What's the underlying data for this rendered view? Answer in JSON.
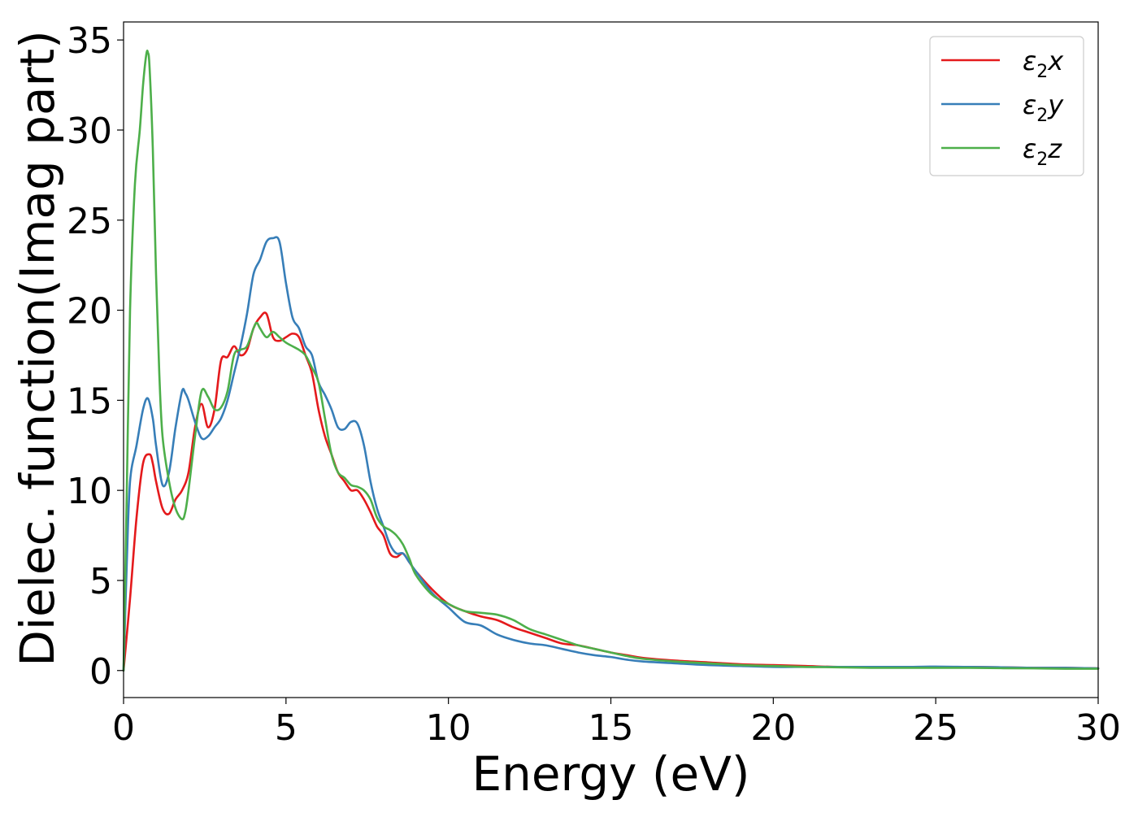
{
  "chart_data": {
    "type": "line",
    "title": "",
    "xlabel": "Energy (eV)",
    "ylabel": "Dielec. function(Imag part)",
    "xlim": [
      0,
      30
    ],
    "ylim": [
      -1.5,
      36
    ],
    "xticks": [
      0,
      5,
      10,
      15,
      20,
      25,
      30
    ],
    "yticks": [
      0,
      5,
      10,
      15,
      20,
      25,
      30,
      35
    ],
    "grid": false,
    "legend_position": "top-right",
    "series": [
      {
        "name": "ε₂x",
        "legend_base": "ε",
        "legend_sub": "2",
        "legend_suffix": "x",
        "color": "#e41a1c",
        "x": [
          0,
          0.2,
          0.4,
          0.6,
          0.8,
          0.9,
          1.0,
          1.2,
          1.4,
          1.6,
          1.8,
          2.0,
          2.2,
          2.4,
          2.6,
          2.8,
          3.0,
          3.2,
          3.4,
          3.6,
          3.8,
          4.0,
          4.2,
          4.4,
          4.6,
          4.8,
          5.0,
          5.2,
          5.4,
          5.6,
          5.8,
          6.0,
          6.2,
          6.4,
          6.6,
          6.8,
          7.0,
          7.2,
          7.4,
          7.6,
          7.8,
          8.0,
          8.2,
          8.4,
          8.6,
          8.8,
          9.0,
          9.5,
          10.0,
          10.5,
          11.0,
          11.5,
          12.0,
          12.5,
          13.0,
          13.5,
          14.0,
          14.5,
          15.0,
          15.5,
          16.0,
          17.0,
          18.0,
          19.0,
          20.0,
          21.0,
          22.0,
          23.0,
          24.0,
          25.0,
          26.0,
          27.0,
          28.0,
          29.0,
          30.0
        ],
        "y": [
          0,
          4.0,
          8.5,
          11.5,
          12.0,
          11.5,
          10.5,
          9.0,
          8.7,
          9.5,
          10.0,
          11.0,
          13.5,
          14.8,
          13.5,
          14.5,
          17.2,
          17.4,
          18.0,
          17.5,
          17.8,
          19.0,
          19.6,
          19.8,
          18.5,
          18.3,
          18.5,
          18.7,
          18.5,
          17.5,
          16.5,
          14.5,
          13.0,
          12.0,
          11.0,
          10.5,
          10.0,
          10.0,
          9.5,
          8.8,
          8.0,
          7.5,
          6.5,
          6.3,
          6.5,
          6.0,
          5.5,
          4.5,
          3.7,
          3.3,
          3.0,
          2.8,
          2.4,
          2.1,
          1.8,
          1.5,
          1.4,
          1.2,
          1.0,
          0.85,
          0.7,
          0.55,
          0.45,
          0.35,
          0.3,
          0.25,
          0.2,
          0.2,
          0.2,
          0.2,
          0.2,
          0.18,
          0.15,
          0.15,
          0.12
        ]
      },
      {
        "name": "ε₂y",
        "legend_base": "ε",
        "legend_sub": "2",
        "legend_suffix": "y",
        "color": "#377eb8",
        "x": [
          0,
          0.1,
          0.2,
          0.4,
          0.6,
          0.75,
          0.9,
          1.0,
          1.2,
          1.4,
          1.6,
          1.8,
          1.9,
          2.0,
          2.2,
          2.4,
          2.6,
          2.8,
          3.0,
          3.2,
          3.4,
          3.6,
          3.8,
          4.0,
          4.2,
          4.4,
          4.6,
          4.8,
          5.0,
          5.2,
          5.4,
          5.6,
          5.8,
          6.0,
          6.2,
          6.4,
          6.6,
          6.8,
          7.0,
          7.2,
          7.4,
          7.6,
          7.8,
          8.0,
          8.2,
          8.4,
          8.6,
          8.8,
          9.0,
          9.5,
          10.0,
          10.5,
          11.0,
          11.5,
          12.0,
          12.5,
          13.0,
          13.5,
          14.0,
          14.5,
          15.0,
          15.5,
          16.0,
          17.0,
          18.0,
          19.0,
          20.0,
          21.0,
          22.0,
          23.0,
          24.0,
          25.0,
          26.0,
          27.0,
          28.0,
          29.0,
          30.0
        ],
        "y": [
          0,
          6.0,
          10.5,
          12.5,
          14.5,
          15.1,
          14.0,
          12.5,
          10.3,
          11.0,
          13.5,
          15.5,
          15.4,
          15.0,
          13.8,
          12.9,
          13.0,
          13.5,
          14.0,
          15.0,
          16.5,
          18.0,
          19.8,
          22.0,
          22.8,
          23.8,
          24.0,
          23.8,
          21.5,
          19.6,
          19.0,
          18.0,
          17.5,
          16.0,
          15.3,
          14.5,
          13.5,
          13.4,
          13.8,
          13.7,
          12.5,
          10.5,
          9.0,
          8.0,
          7.0,
          6.5,
          6.5,
          6.0,
          5.5,
          4.3,
          3.5,
          2.7,
          2.5,
          2.0,
          1.7,
          1.5,
          1.4,
          1.2,
          1.0,
          0.85,
          0.75,
          0.6,
          0.5,
          0.4,
          0.3,
          0.25,
          0.2,
          0.2,
          0.2,
          0.2,
          0.2,
          0.22,
          0.2,
          0.18,
          0.15,
          0.15,
          0.12
        ]
      },
      {
        "name": "ε₂z",
        "legend_base": "ε",
        "legend_sub": "2",
        "legend_suffix": "z",
        "color": "#4daf4a",
        "x": [
          0,
          0.1,
          0.2,
          0.35,
          0.5,
          0.6,
          0.7,
          0.75,
          0.8,
          0.9,
          1.0,
          1.1,
          1.2,
          1.4,
          1.6,
          1.8,
          1.9,
          2.0,
          2.2,
          2.4,
          2.6,
          2.8,
          3.0,
          3.2,
          3.4,
          3.6,
          3.8,
          4.0,
          4.1,
          4.2,
          4.4,
          4.6,
          4.8,
          5.0,
          5.2,
          5.4,
          5.6,
          5.8,
          6.0,
          6.2,
          6.4,
          6.6,
          6.8,
          7.0,
          7.2,
          7.4,
          7.6,
          7.8,
          8.0,
          8.2,
          8.4,
          8.6,
          8.8,
          9.0,
          9.5,
          10.0,
          10.5,
          11.0,
          11.5,
          12.0,
          12.5,
          13.0,
          13.5,
          14.0,
          14.5,
          15.0,
          15.5,
          16.0,
          17.0,
          18.0,
          19.0,
          20.0,
          21.0,
          22.0,
          23.0,
          24.0,
          25.0,
          26.0,
          27.0,
          28.0,
          29.0,
          30.0
        ],
        "y": [
          0,
          10.0,
          20.0,
          27.0,
          30.0,
          32.5,
          34.2,
          34.3,
          33.5,
          29.0,
          22.0,
          16.5,
          13.0,
          10.5,
          9.0,
          8.4,
          8.8,
          10.0,
          13.0,
          15.5,
          15.2,
          14.5,
          14.6,
          15.5,
          17.5,
          17.8,
          18.0,
          19.0,
          19.3,
          19.0,
          18.5,
          18.8,
          18.5,
          18.2,
          18.0,
          17.8,
          17.5,
          16.8,
          16.0,
          14.0,
          12.0,
          11.0,
          10.7,
          10.3,
          10.2,
          10.0,
          9.5,
          8.5,
          8.0,
          7.8,
          7.5,
          7.0,
          6.2,
          5.3,
          4.2,
          3.7,
          3.3,
          3.2,
          3.1,
          2.8,
          2.3,
          2.0,
          1.7,
          1.4,
          1.2,
          1.0,
          0.8,
          0.65,
          0.5,
          0.4,
          0.3,
          0.25,
          0.2,
          0.18,
          0.15,
          0.15,
          0.15,
          0.15,
          0.13,
          0.12,
          0.1,
          0.1
        ]
      }
    ]
  }
}
